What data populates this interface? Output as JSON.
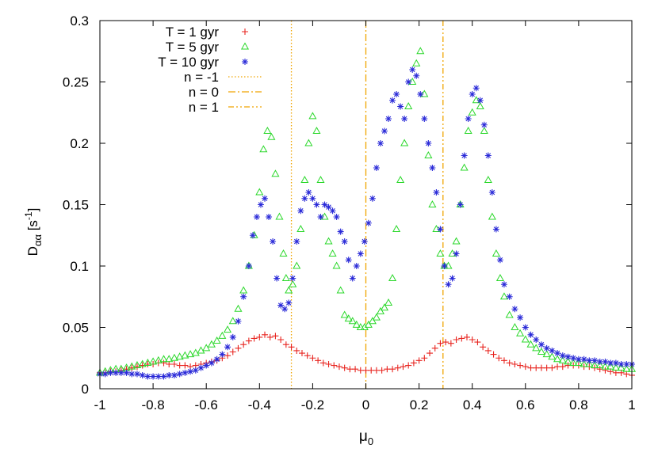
{
  "chart_data": {
    "type": "scatter",
    "xlabel": {
      "base": "μ",
      "sub": "0"
    },
    "ylabel": {
      "base": "D",
      "sub": "αα",
      "unit_open": " [s",
      "unit_sup": "-1",
      "unit_close": "]"
    },
    "xlim": [
      -1,
      1
    ],
    "ylim": [
      0,
      0.3
    ],
    "x_ticks": [
      -1,
      -0.8,
      -0.6,
      -0.4,
      -0.2,
      0,
      0.2,
      0.4,
      0.6,
      0.8,
      1
    ],
    "x_tick_labels": [
      "-1",
      "-0.8",
      "-0.6",
      "-0.4",
      "-0.2",
      "0",
      "0.2",
      "0.4",
      "0.6",
      "0.8",
      "1"
    ],
    "y_ticks": [
      0,
      0.05,
      0.1,
      0.15,
      0.2,
      0.25,
      0.3
    ],
    "y_tick_labels": [
      "0",
      "0.05",
      "0.1",
      "0.15",
      "0.2",
      "0.25",
      "0.3"
    ],
    "grid": false,
    "legend_position": "top-left",
    "series": [
      {
        "name": "T = 1 gyr",
        "marker": "plus",
        "color": "#e8241f",
        "x": [
          -1.0,
          -0.98,
          -0.96,
          -0.94,
          -0.92,
          -0.9,
          -0.88,
          -0.86,
          -0.84,
          -0.82,
          -0.8,
          -0.78,
          -0.76,
          -0.74,
          -0.72,
          -0.7,
          -0.68,
          -0.66,
          -0.64,
          -0.62,
          -0.6,
          -0.58,
          -0.56,
          -0.54,
          -0.52,
          -0.5,
          -0.48,
          -0.46,
          -0.44,
          -0.42,
          -0.4,
          -0.38,
          -0.36,
          -0.34,
          -0.32,
          -0.3,
          -0.28,
          -0.26,
          -0.24,
          -0.22,
          -0.2,
          -0.18,
          -0.16,
          -0.14,
          -0.12,
          -0.1,
          -0.08,
          -0.06,
          -0.04,
          -0.02,
          0.0,
          0.02,
          0.04,
          0.06,
          0.08,
          0.1,
          0.12,
          0.14,
          0.16,
          0.18,
          0.2,
          0.22,
          0.24,
          0.26,
          0.28,
          0.3,
          0.32,
          0.34,
          0.36,
          0.38,
          0.4,
          0.42,
          0.44,
          0.46,
          0.48,
          0.5,
          0.52,
          0.54,
          0.56,
          0.58,
          0.6,
          0.62,
          0.64,
          0.66,
          0.68,
          0.7,
          0.72,
          0.74,
          0.76,
          0.78,
          0.8,
          0.82,
          0.84,
          0.86,
          0.88,
          0.9,
          0.92,
          0.94,
          0.96,
          0.98,
          1.0
        ],
        "y": [
          0.013,
          0.013,
          0.014,
          0.014,
          0.015,
          0.016,
          0.017,
          0.018,
          0.019,
          0.02,
          0.02,
          0.021,
          0.021,
          0.02,
          0.02,
          0.019,
          0.019,
          0.018,
          0.019,
          0.02,
          0.021,
          0.022,
          0.023,
          0.025,
          0.027,
          0.03,
          0.033,
          0.036,
          0.039,
          0.041,
          0.042,
          0.044,
          0.042,
          0.043,
          0.04,
          0.036,
          0.034,
          0.031,
          0.029,
          0.027,
          0.025,
          0.023,
          0.021,
          0.02,
          0.019,
          0.018,
          0.017,
          0.016,
          0.016,
          0.015,
          0.015,
          0.015,
          0.015,
          0.015,
          0.016,
          0.016,
          0.017,
          0.018,
          0.019,
          0.021,
          0.023,
          0.025,
          0.029,
          0.033,
          0.037,
          0.038,
          0.037,
          0.04,
          0.041,
          0.042,
          0.04,
          0.038,
          0.034,
          0.031,
          0.028,
          0.025,
          0.023,
          0.021,
          0.02,
          0.019,
          0.018,
          0.017,
          0.017,
          0.017,
          0.017,
          0.017,
          0.018,
          0.018,
          0.019,
          0.019,
          0.019,
          0.018,
          0.018,
          0.017,
          0.016,
          0.015,
          0.014,
          0.013,
          0.013,
          0.012,
          0.011
        ]
      },
      {
        "name": "T = 5 gyr",
        "marker": "triangle",
        "color": "#2bd82b",
        "x": [
          -1.0,
          -0.98,
          -0.96,
          -0.94,
          -0.92,
          -0.9,
          -0.88,
          -0.86,
          -0.84,
          -0.82,
          -0.8,
          -0.78,
          -0.76,
          -0.74,
          -0.72,
          -0.7,
          -0.68,
          -0.66,
          -0.64,
          -0.62,
          -0.6,
          -0.58,
          -0.56,
          -0.54,
          -0.52,
          -0.5,
          -0.48,
          -0.46,
          -0.44,
          -0.42,
          -0.4,
          -0.385,
          -0.37,
          -0.355,
          -0.34,
          -0.325,
          -0.31,
          -0.3,
          -0.29,
          -0.275,
          -0.26,
          -0.245,
          -0.23,
          -0.215,
          -0.2,
          -0.185,
          -0.17,
          -0.155,
          -0.14,
          -0.125,
          -0.11,
          -0.095,
          -0.08,
          -0.065,
          -0.05,
          -0.035,
          -0.02,
          -0.005,
          0.01,
          0.025,
          0.04,
          0.055,
          0.07,
          0.085,
          0.1,
          0.115,
          0.13,
          0.145,
          0.16,
          0.175,
          0.19,
          0.205,
          0.22,
          0.235,
          0.25,
          0.265,
          0.28,
          0.295,
          0.31,
          0.325,
          0.34,
          0.355,
          0.37,
          0.385,
          0.4,
          0.415,
          0.43,
          0.445,
          0.46,
          0.475,
          0.49,
          0.505,
          0.52,
          0.54,
          0.56,
          0.58,
          0.6,
          0.62,
          0.64,
          0.66,
          0.68,
          0.7,
          0.72,
          0.74,
          0.76,
          0.78,
          0.8,
          0.82,
          0.84,
          0.86,
          0.88,
          0.9,
          0.92,
          0.94,
          0.96,
          0.98,
          1.0
        ],
        "y": [
          0.013,
          0.014,
          0.015,
          0.016,
          0.016,
          0.017,
          0.018,
          0.019,
          0.02,
          0.021,
          0.022,
          0.023,
          0.024,
          0.024,
          0.025,
          0.026,
          0.027,
          0.028,
          0.029,
          0.031,
          0.033,
          0.036,
          0.039,
          0.043,
          0.048,
          0.055,
          0.065,
          0.08,
          0.1,
          0.125,
          0.16,
          0.195,
          0.21,
          0.205,
          0.175,
          0.14,
          0.11,
          0.09,
          0.08,
          0.085,
          0.1,
          0.13,
          0.17,
          0.2,
          0.222,
          0.21,
          0.17,
          0.14,
          0.12,
          0.11,
          0.1,
          0.08,
          0.06,
          0.057,
          0.055,
          0.052,
          0.05,
          0.05,
          0.052,
          0.055,
          0.058,
          0.063,
          0.066,
          0.07,
          0.09,
          0.13,
          0.17,
          0.2,
          0.23,
          0.25,
          0.265,
          0.275,
          0.24,
          0.19,
          0.15,
          0.13,
          0.11,
          0.1,
          0.1,
          0.11,
          0.12,
          0.15,
          0.18,
          0.21,
          0.225,
          0.235,
          0.23,
          0.21,
          0.17,
          0.14,
          0.11,
          0.09,
          0.075,
          0.06,
          0.05,
          0.045,
          0.04,
          0.036,
          0.033,
          0.03,
          0.028,
          0.026,
          0.024,
          0.023,
          0.022,
          0.021,
          0.021,
          0.02,
          0.02,
          0.019,
          0.019,
          0.018,
          0.018,
          0.017,
          0.017,
          0.016,
          0.016
        ]
      },
      {
        "name": "T = 10 gyr",
        "marker": "star",
        "color": "#2a2ad8",
        "x": [
          -1.0,
          -0.98,
          -0.96,
          -0.94,
          -0.92,
          -0.9,
          -0.88,
          -0.86,
          -0.84,
          -0.82,
          -0.8,
          -0.78,
          -0.76,
          -0.74,
          -0.72,
          -0.7,
          -0.68,
          -0.66,
          -0.64,
          -0.62,
          -0.6,
          -0.58,
          -0.56,
          -0.54,
          -0.52,
          -0.5,
          -0.48,
          -0.46,
          -0.44,
          -0.425,
          -0.41,
          -0.395,
          -0.38,
          -0.365,
          -0.35,
          -0.335,
          -0.32,
          -0.305,
          -0.29,
          -0.275,
          -0.26,
          -0.245,
          -0.23,
          -0.215,
          -0.2,
          -0.185,
          -0.17,
          -0.155,
          -0.14,
          -0.125,
          -0.11,
          -0.095,
          -0.08,
          -0.065,
          -0.05,
          -0.035,
          -0.02,
          -0.005,
          0.01,
          0.025,
          0.04,
          0.055,
          0.07,
          0.085,
          0.1,
          0.115,
          0.13,
          0.145,
          0.16,
          0.175,
          0.19,
          0.205,
          0.22,
          0.235,
          0.25,
          0.265,
          0.28,
          0.295,
          0.31,
          0.325,
          0.34,
          0.355,
          0.37,
          0.385,
          0.4,
          0.415,
          0.43,
          0.445,
          0.46,
          0.475,
          0.49,
          0.505,
          0.52,
          0.54,
          0.56,
          0.58,
          0.6,
          0.62,
          0.64,
          0.66,
          0.68,
          0.7,
          0.72,
          0.74,
          0.76,
          0.78,
          0.8,
          0.82,
          0.84,
          0.86,
          0.88,
          0.9,
          0.92,
          0.94,
          0.96,
          0.98,
          1.0
        ],
        "y": [
          0.012,
          0.012,
          0.013,
          0.013,
          0.013,
          0.013,
          0.012,
          0.012,
          0.011,
          0.01,
          0.01,
          0.01,
          0.01,
          0.011,
          0.011,
          0.012,
          0.013,
          0.014,
          0.015,
          0.017,
          0.019,
          0.021,
          0.024,
          0.028,
          0.034,
          0.042,
          0.055,
          0.075,
          0.1,
          0.125,
          0.14,
          0.15,
          0.155,
          0.14,
          0.12,
          0.09,
          0.068,
          0.065,
          0.07,
          0.09,
          0.12,
          0.145,
          0.155,
          0.16,
          0.155,
          0.15,
          0.14,
          0.15,
          0.148,
          0.145,
          0.14,
          0.128,
          0.12,
          0.105,
          0.09,
          0.1,
          0.11,
          0.12,
          0.135,
          0.155,
          0.18,
          0.2,
          0.21,
          0.22,
          0.235,
          0.24,
          0.23,
          0.22,
          0.25,
          0.26,
          0.255,
          0.24,
          0.22,
          0.2,
          0.18,
          0.16,
          0.13,
          0.1,
          0.085,
          0.09,
          0.11,
          0.15,
          0.19,
          0.22,
          0.24,
          0.245,
          0.235,
          0.215,
          0.19,
          0.16,
          0.13,
          0.105,
          0.085,
          0.075,
          0.065,
          0.058,
          0.05,
          0.044,
          0.04,
          0.036,
          0.033,
          0.031,
          0.029,
          0.027,
          0.026,
          0.025,
          0.024,
          0.024,
          0.023,
          0.023,
          0.022,
          0.022,
          0.021,
          0.021,
          0.02,
          0.02,
          0.02
        ]
      }
    ],
    "vertical_lines": [
      {
        "name": "n = -1",
        "x": -0.28,
        "dash": "dotted",
        "color": "#f0a500"
      },
      {
        "name": "n = 0",
        "x": 0.0,
        "dash": "dash-dot",
        "color": "#f0a500"
      },
      {
        "name": "n = 1",
        "x": 0.29,
        "dash": "dash-dot-dot",
        "color": "#f0a500"
      }
    ]
  }
}
